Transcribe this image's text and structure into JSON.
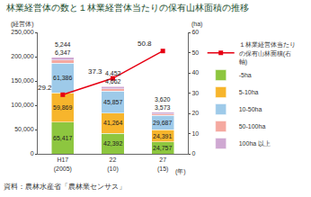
{
  "chart_data": {
    "type": "bar",
    "stacked": true,
    "title": "林業経営体の数と１林業経営体当たりの保有山林面積の推移",
    "xlabel": "(年)",
    "ylabel": "(経営体)",
    "y2label": "(ha)",
    "source": "資料：農林水産省「農林業センサス」",
    "categories": [
      "H17\n(2005)",
      "22\n(10)",
      "27\n(15)"
    ],
    "series": [
      {
        "name": "-5ha",
        "color": "#8dc63f",
        "values": [
          65417,
          42392,
          24757
        ],
        "value_labels": [
          "65,417",
          "42,392",
          "24,757"
        ]
      },
      {
        "name": "5-10ha",
        "color": "#f7b52c",
        "values": [
          59869,
          41264,
          24391
        ],
        "value_labels": [
          "59,869",
          "41,264",
          "24,391"
        ]
      },
      {
        "name": "10-50ha",
        "color": "#9ecae9",
        "values": [
          61386,
          45857,
          29687
        ],
        "value_labels": [
          "61,386",
          "45,857",
          "29,687"
        ]
      },
      {
        "name": "50-100ha",
        "color": "#f5a9a0",
        "values": [
          6347,
          4662,
          3573
        ],
        "value_labels": [
          "6,347",
          "4,662",
          "3,573"
        ]
      },
      {
        "name": "100ha 以上",
        "color": "#cfa8d2",
        "values": [
          5244,
          4452,
          3620
        ],
        "value_labels": [
          "5,244",
          "4,452",
          "3,620"
        ]
      },
      {
        "name": "１林業経営体当たりの保有山林面積(右軸)",
        "type": "line",
        "axis": "y2",
        "color": "#e60012",
        "marker": "square",
        "values": [
          29.2,
          37.3,
          50.8
        ]
      }
    ],
    "data_labels": true,
    "grid": false,
    "legend": "right",
    "ylim": [
      0,
      250000
    ],
    "yticks": [
      0,
      {
        "value": 50000,
        "label": "50,000"
      },
      {
        "value": 100000,
        "label": "100,000"
      },
      {
        "value": 150000,
        "label": "150,000"
      },
      {
        "value": 200000,
        "label": "200,000"
      },
      {
        "value": 250000,
        "label": "250,000"
      }
    ],
    "y2lim": [
      0,
      60
    ],
    "y2ticks": [
      0,
      10,
      20,
      30,
      40,
      50,
      60
    ]
  }
}
